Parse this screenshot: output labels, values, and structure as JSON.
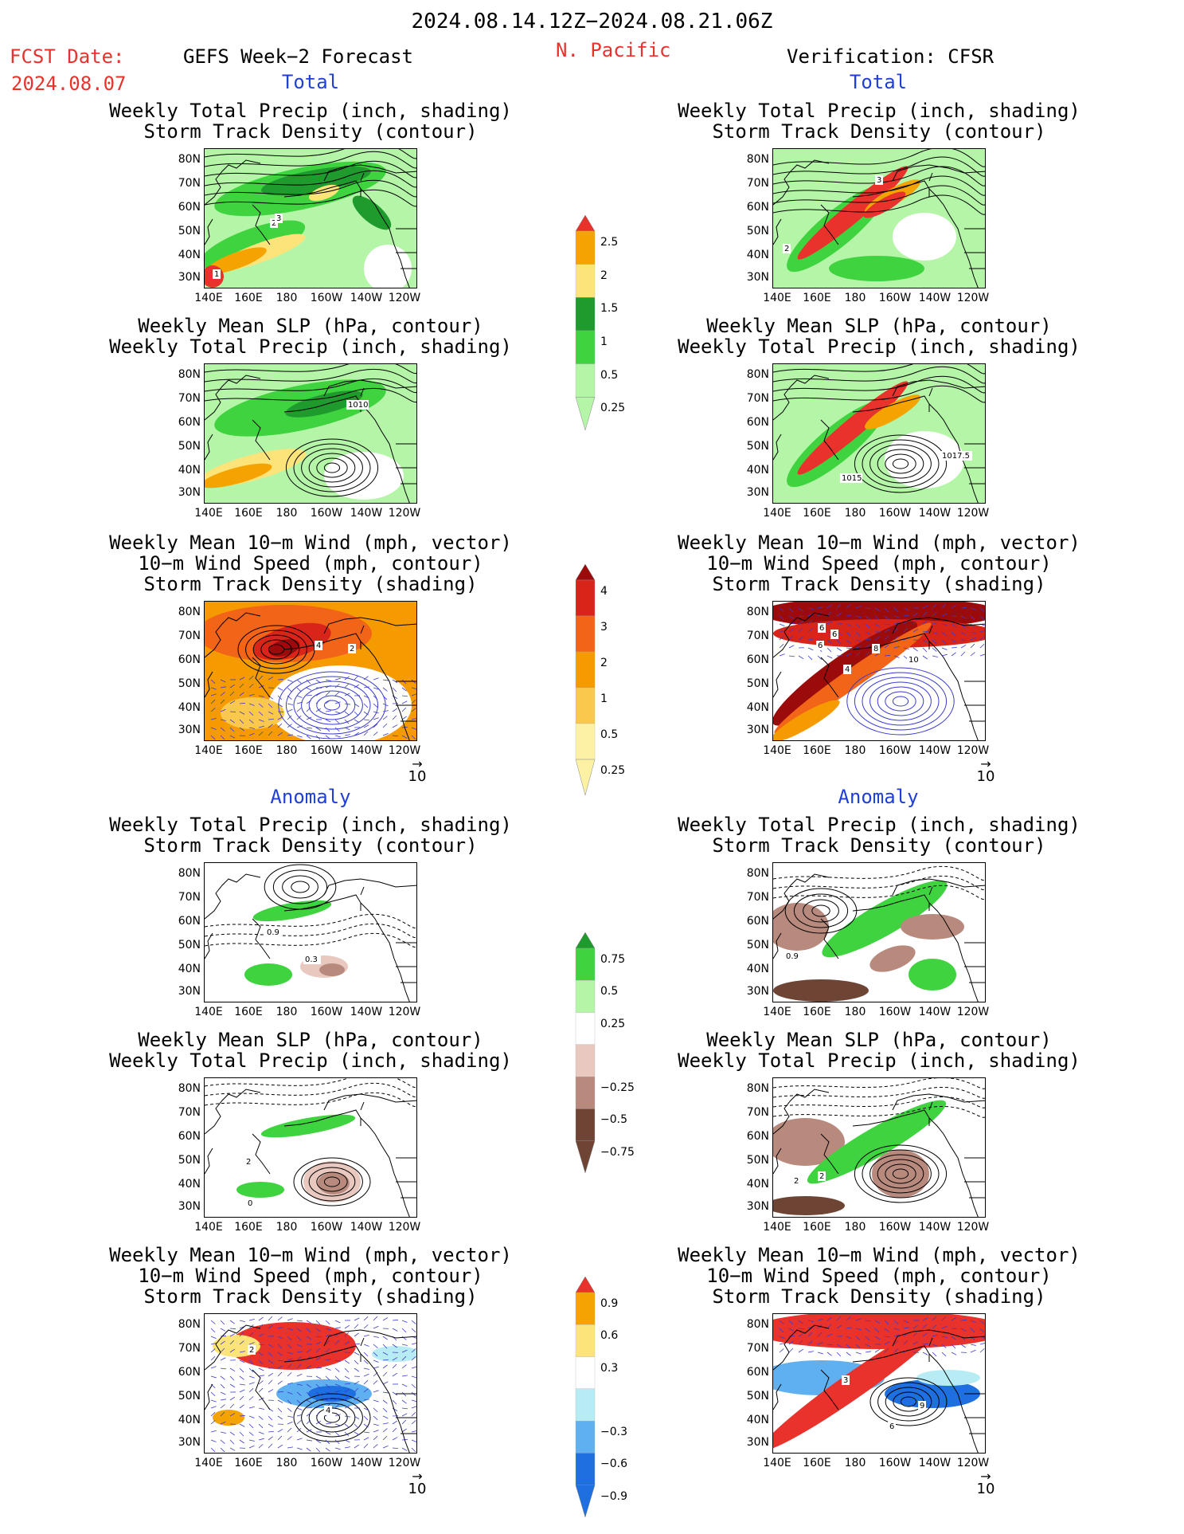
{
  "header": {
    "date_range": "2024.08.14.12Z−2024.08.21.06Z",
    "fcst_label": "FCST Date:",
    "fcst_date": "2024.08.07",
    "forecast_title": "GEFS Week−2 Forecast",
    "region": "N. Pacific",
    "verification": "Verification: CFSR"
  },
  "sections": {
    "total": "Total",
    "anomaly": "Anomaly"
  },
  "titles": {
    "precip_storm": [
      "Weekly Total Precip (inch, shading)",
      "Storm Track Density (contour)"
    ],
    "slp_precip": [
      "Weekly Mean SLP (hPa, contour)",
      "Weekly Total Precip (inch, shading)"
    ],
    "wind_storm": [
      "Weekly Mean 10−m Wind (mph, vector)",
      "10−m Wind Speed (mph, contour)",
      "Storm Track Density (shading)"
    ]
  },
  "axes": {
    "lat": [
      "80N",
      "70N",
      "60N",
      "50N",
      "40N",
      "30N"
    ],
    "lon": [
      "140E",
      "160E",
      "180",
      "160W",
      "140W",
      "120W"
    ]
  },
  "vector_ref": "10",
  "colorbars": {
    "precip_total": {
      "labels": [
        "2.5",
        "2",
        "1.5",
        "1",
        "0.5",
        "0.25"
      ],
      "colors": [
        "#e8322b",
        "#f5a300",
        "#fde47a",
        "#1f9b2e",
        "#3fd33f",
        "#b4f5a8"
      ]
    },
    "storm_total": {
      "labels": [
        "4",
        "3",
        "2",
        "1",
        "0.5",
        "0.25"
      ],
      "colors": [
        "#9b0b0b",
        "#d9241a",
        "#f26418",
        "#f59a00",
        "#fbc84e",
        "#fdf2a3"
      ]
    },
    "precip_anom": {
      "labels": [
        "0.75",
        "0.5",
        "0.25",
        "−0.25",
        "−0.5",
        "−0.75"
      ],
      "colors": [
        "#1f9b2e",
        "#3fd33f",
        "#b4f5a8",
        "#ffffff",
        "#e8c8bf",
        "#b88a7e",
        "#6e4434"
      ]
    },
    "storm_anom": {
      "labels": [
        "0.9",
        "0.6",
        "0.3",
        "−0.3",
        "−0.6",
        "−0.9"
      ],
      "colors": [
        "#e8322b",
        "#f5a300",
        "#fde47a",
        "#ffffff",
        "#b8ecf5",
        "#5fb0f0",
        "#1e6fe0"
      ]
    }
  },
  "map_labels": {
    "l1": [
      "1",
      "2",
      "3"
    ],
    "l2": [
      "1010"
    ],
    "l3": [
      "4",
      "2"
    ],
    "r1": [
      "2",
      "3"
    ],
    "r2": [
      "1015",
      "1017.5"
    ],
    "r3": [
      "6",
      "6",
      "4",
      "8",
      "10",
      "6"
    ],
    "l4": [
      "0.9",
      "0.3"
    ],
    "l5": [
      "2",
      "0"
    ],
    "l6": [
      "2",
      "4"
    ],
    "r4": [
      "0.9"
    ],
    "r5": [
      "2",
      "2"
    ],
    "r6": [
      "3",
      "9",
      "6"
    ]
  }
}
